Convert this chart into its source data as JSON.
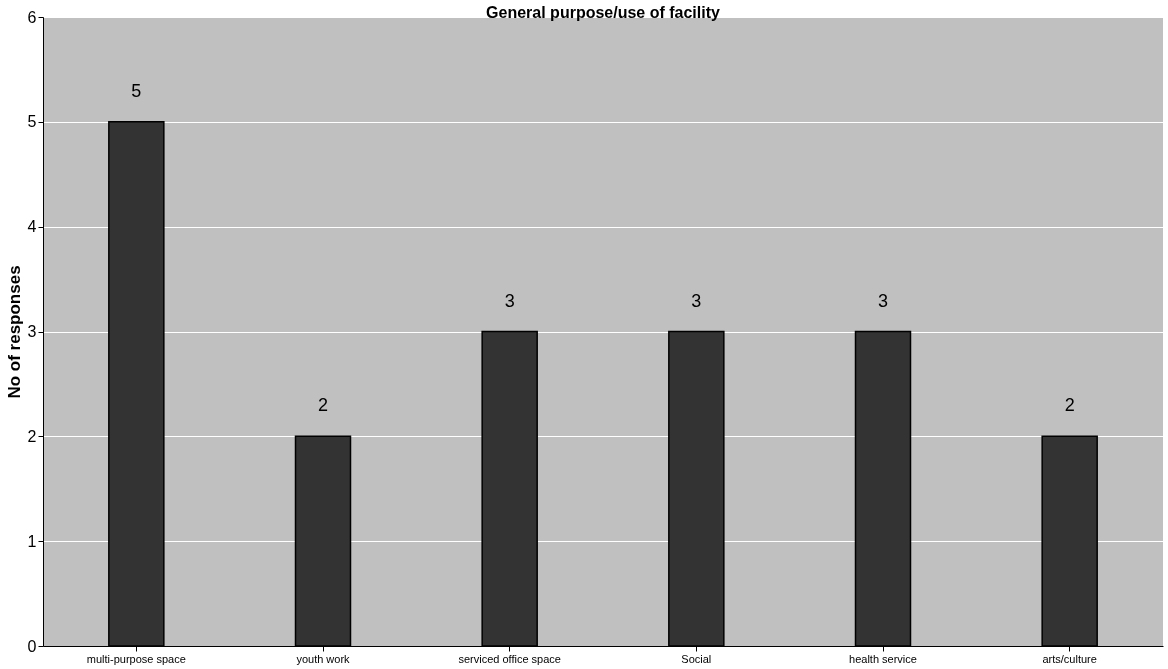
{
  "chart_data": {
    "type": "bar",
    "title": "General purpose/use of facility",
    "ylabel": "No of responses",
    "categories": [
      "multi-purpose space",
      "youth work",
      "serviced office space",
      "Social",
      "health service",
      "arts/culture"
    ],
    "values": [
      5,
      2,
      3,
      3,
      3,
      2
    ],
    "color": "#333333",
    "ylim": [
      0,
      6
    ],
    "yticks": [
      0,
      1,
      2,
      3,
      4,
      5,
      6
    ],
    "grid": "y",
    "data_labels": true
  }
}
